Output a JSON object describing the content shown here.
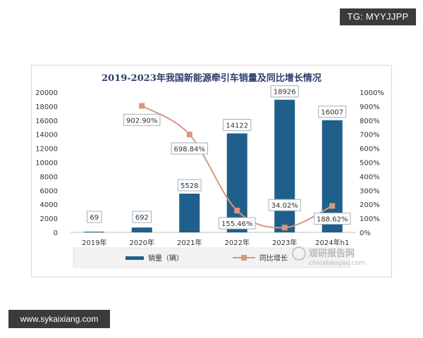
{
  "watermark_top": "TG: MYYJJPP",
  "watermark_bottom": "www.sykaixiang.com",
  "site_watermark": {
    "name": "观研报告网",
    "url": "chinabaogao.com"
  },
  "chart_data": {
    "type": "bar",
    "title": "2019-2023年我国新能源牵引车销量及同比增长情况",
    "categories": [
      "2019年",
      "2020年",
      "2021年",
      "2022年",
      "2023年",
      "2024年h1"
    ],
    "series": [
      {
        "name": "销量（辆）",
        "type": "bar",
        "axis": "left",
        "color": "#1f5f8b",
        "values": [
          69,
          692,
          5528,
          14122,
          18926,
          16007
        ],
        "labels": [
          "69",
          "692",
          "5528",
          "14122",
          "18926",
          "16007"
        ]
      },
      {
        "name": "同比增长",
        "type": "line",
        "axis": "right",
        "color": "#d9967f",
        "values": [
          null,
          902.9,
          698.84,
          155.46,
          34.02,
          188.62
        ],
        "labels": [
          "",
          "902.90%",
          "698.84%",
          "155.46%",
          "34.02%",
          "188.62%"
        ]
      }
    ],
    "ylim": [
      0,
      20000
    ],
    "yticks": [
      "0",
      "2000",
      "4000",
      "6000",
      "8000",
      "10000",
      "12000",
      "14000",
      "16000",
      "18000",
      "20000"
    ],
    "y2lim": [
      0,
      1000
    ],
    "y2ticks": [
      "0%",
      "100%",
      "200%",
      "300%",
      "400%",
      "500%",
      "600%",
      "700%",
      "800%",
      "900%",
      "1000%"
    ],
    "legend_position": "bottom",
    "grid": false
  }
}
